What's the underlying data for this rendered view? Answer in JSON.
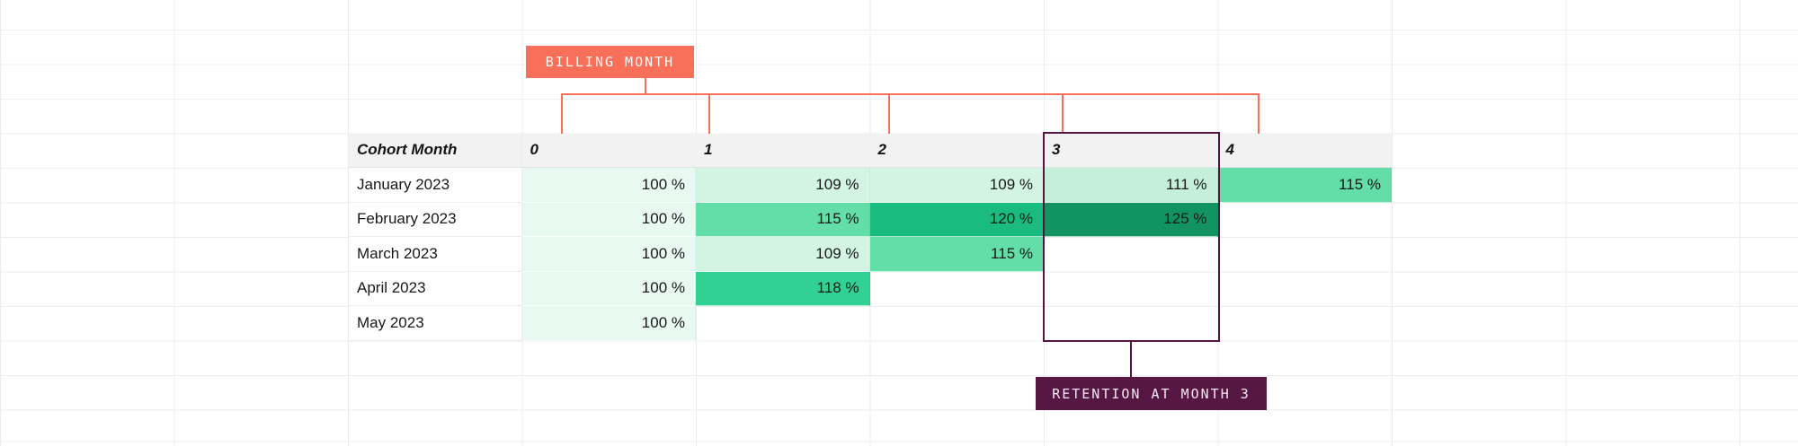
{
  "billing_badge": {
    "label": "BILLING MONTH",
    "bg": "#F9705A",
    "text_color": "#FFF6F2"
  },
  "retention_badge": {
    "label": "RETENTION AT MONTH 3",
    "bg": "#571744",
    "text_color": "#F5E9F1"
  },
  "connector_color": "#F9705A",
  "highlight": {
    "column": "3",
    "border_color": "#531544"
  },
  "grid": {
    "line_color": "#ECECEC",
    "header_bg": "#F2F2F2"
  },
  "chart_data": {
    "type": "heatmap",
    "columns": [
      "Cohort Month",
      "0",
      "1",
      "2",
      "3",
      "4"
    ],
    "rows": [
      {
        "label": "January 2023",
        "values": [
          100,
          109,
          109,
          111,
          115
        ]
      },
      {
        "label": "February 2023",
        "values": [
          100,
          115,
          120,
          125,
          null
        ]
      },
      {
        "label": "March 2023",
        "values": [
          100,
          109,
          115,
          null,
          null
        ]
      },
      {
        "label": "April 2023",
        "values": [
          100,
          118,
          null,
          null,
          null
        ]
      },
      {
        "label": "May 2023",
        "values": [
          100,
          null,
          null,
          null,
          null
        ]
      }
    ],
    "value_suffix": " %",
    "color_scale": {
      "100": "#E7F9F0",
      "109": "#D3F4E3",
      "111": "#C4F0DA",
      "115": "#63DEA8",
      "118": "#30D192",
      "120": "#19BC7E",
      "125": "#129462"
    },
    "annotations": [
      {
        "label": "BILLING MONTH",
        "points_to": "columns 0–4"
      },
      {
        "label": "RETENTION AT MONTH 3",
        "points_to": "column 3"
      }
    ]
  }
}
